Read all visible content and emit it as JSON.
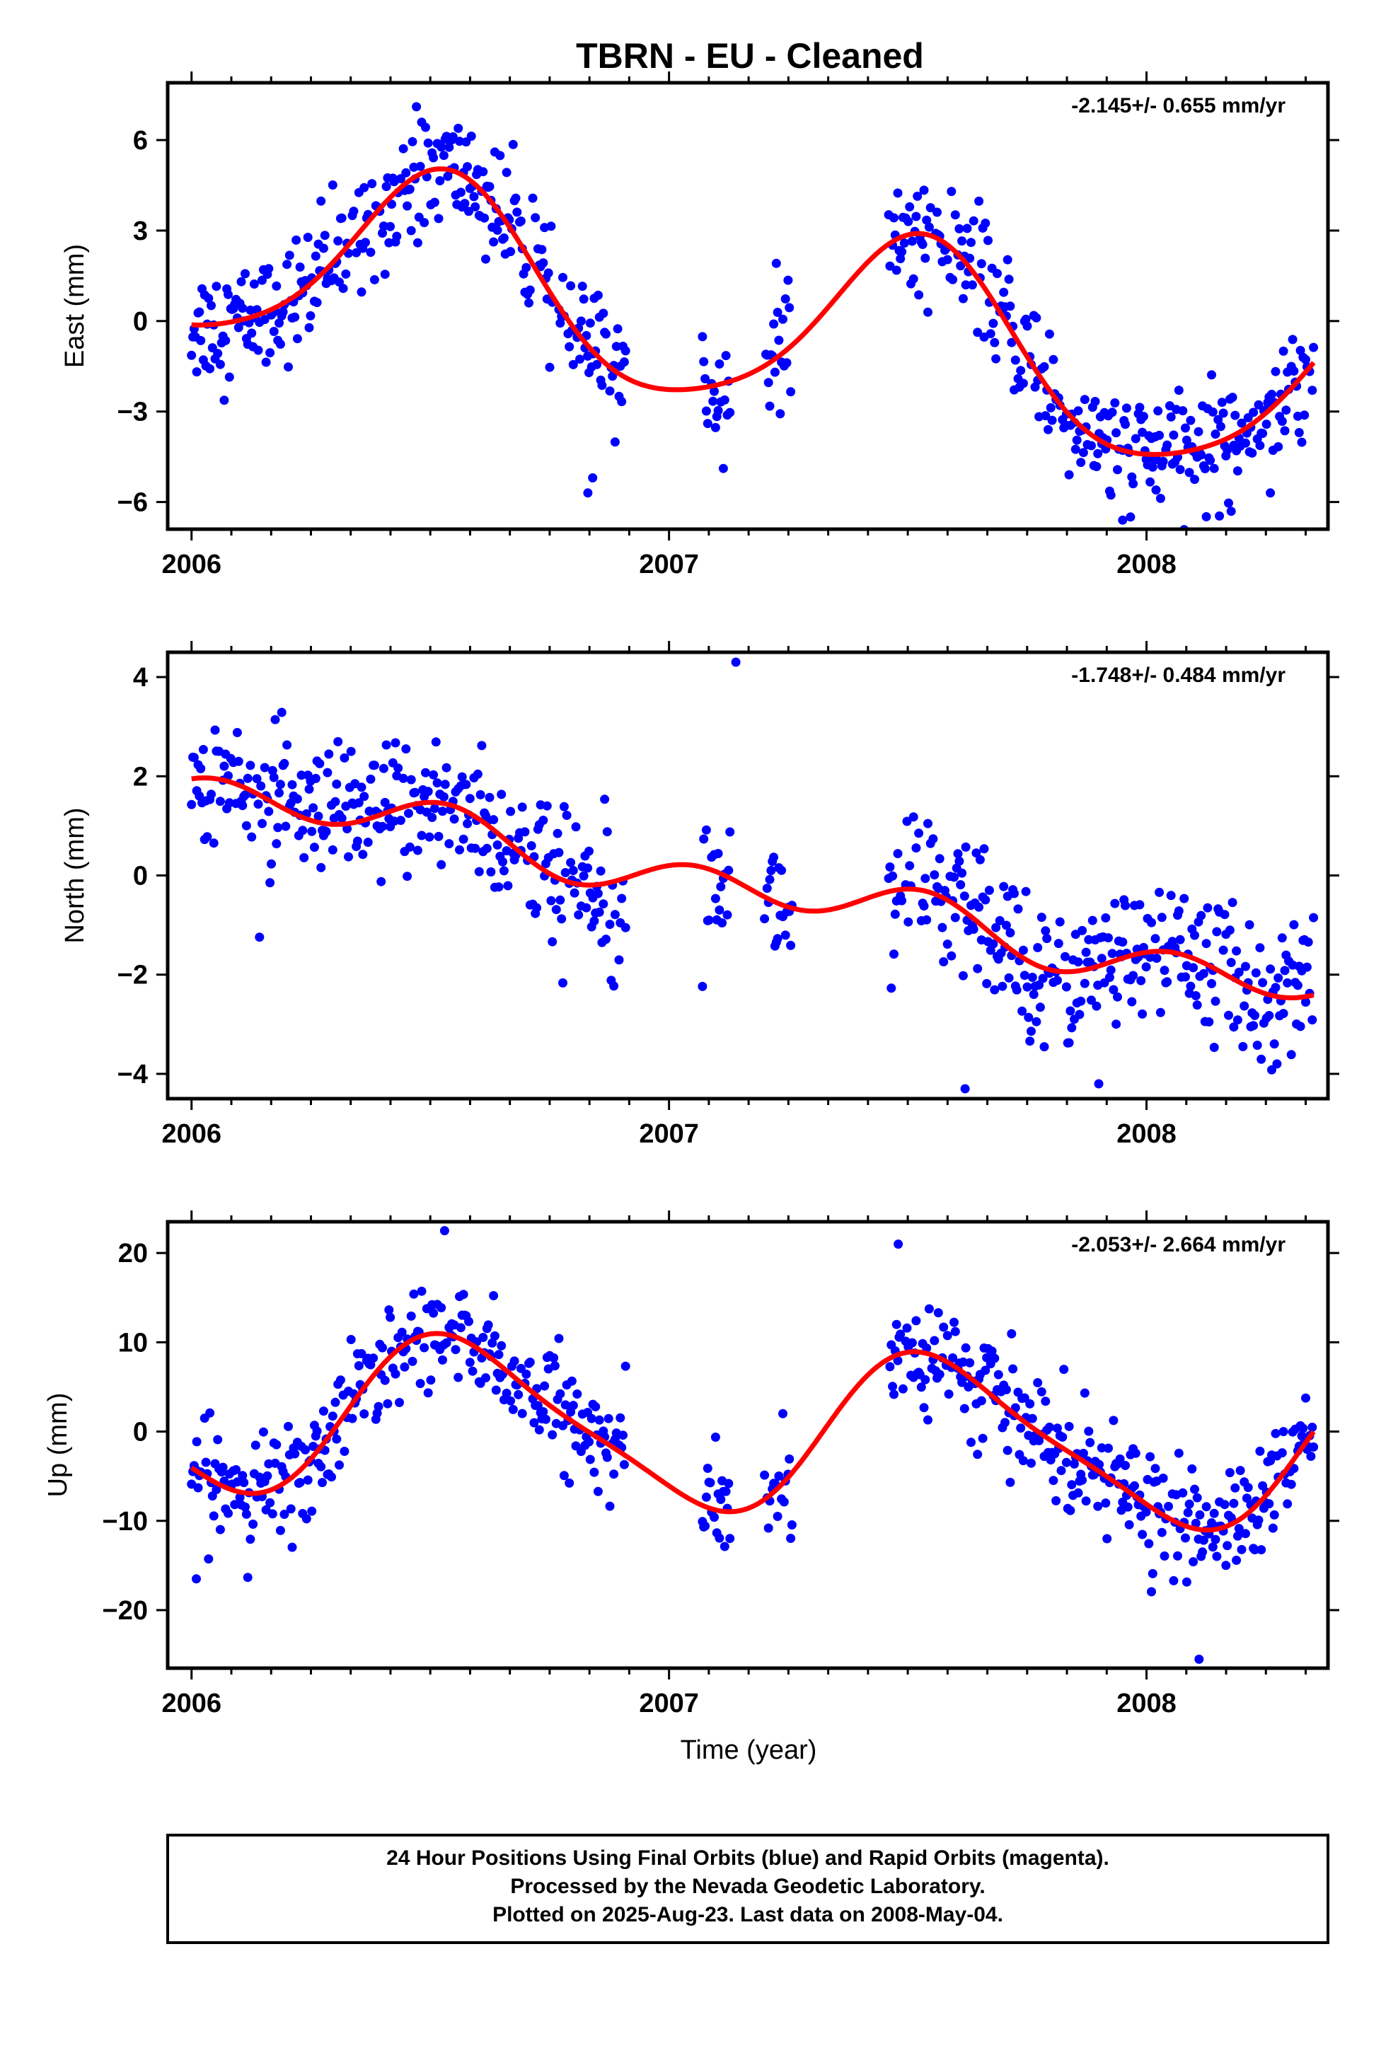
{
  "title": "TBRN  - EU - Cleaned",
  "x_axis_label": "Time (year)",
  "footer": {
    "line1": "24 Hour Positions Using Final Orbits (blue) and Rapid Orbits (magenta).",
    "line2": "Processed by the Nevada Geodetic Laboratory.",
    "line3": "Plotted on 2025-Aug-23. Last data on 2008-May-04."
  },
  "colors": {
    "points": "#0000ff",
    "fit": "#ff0000",
    "axes": "#000000"
  },
  "chart_data": [
    {
      "type": "scatter",
      "component": "east",
      "ylabel": "East (mm)",
      "rate_label": "-2.145+/- 0.655 mm/yr",
      "xlim": [
        2005.95,
        2008.38
      ],
      "ylim": [
        -6.9,
        7.9
      ],
      "x_ticks": [
        2006,
        2007,
        2008
      ],
      "y_ticks": [
        -6,
        -3,
        0,
        3,
        6
      ],
      "y_tick_labels": [
        "−6",
        "−3",
        "0",
        "3",
        "6"
      ],
      "model": {
        "type": "seasonal_fit",
        "offset": 0.0,
        "rate": -2.145,
        "a1": -3.1,
        "b1": -0.4,
        "a2": 0.4,
        "b2": 0.3,
        "t0": 2007.2
      },
      "scatter": 1.3,
      "outliers": [
        [
          2006.83,
          -5.7
        ],
        [
          2006.84,
          -5.2
        ],
        [
          2007.95,
          -6.6
        ],
        [
          2008.02,
          -5.6
        ]
      ],
      "segments": [
        [
          2006.0,
          2006.91
        ],
        [
          2007.07,
          2007.13
        ],
        [
          2007.2,
          2007.26
        ],
        [
          2007.46,
          2008.35
        ]
      ]
    },
    {
      "type": "scatter",
      "component": "north",
      "ylabel": "North (mm)",
      "rate_label": "-1.748+/- 0.484 mm/yr",
      "xlim": [
        2005.95,
        2008.38
      ],
      "ylim": [
        -4.5,
        4.5
      ],
      "x_ticks": [
        2006,
        2007,
        2008
      ],
      "y_ticks": [
        -4,
        -2,
        0,
        2,
        4
      ],
      "y_tick_labels": [
        "−4",
        "−2",
        "0",
        "2",
        "4"
      ],
      "model": {
        "type": "seasonal_fit",
        "offset": -0.3,
        "rate": -1.748,
        "a1": -0.2,
        "b1": 0.1,
        "a2": 0.35,
        "b2": 0.2,
        "t0": 2007.2
      },
      "scatter": 0.95,
      "outliers": [
        [
          2007.14,
          4.3
        ],
        [
          2007.62,
          -4.3
        ],
        [
          2007.9,
          -4.2
        ]
      ],
      "segments": [
        [
          2006.0,
          2006.91
        ],
        [
          2007.07,
          2007.13
        ],
        [
          2007.2,
          2007.26
        ],
        [
          2007.46,
          2008.35
        ]
      ]
    },
    {
      "type": "scatter",
      "component": "up",
      "ylabel": "Up (mm)",
      "rate_label": "-2.053+/- 2.664 mm/yr",
      "xlim": [
        2005.95,
        2008.38
      ],
      "ylim": [
        -26.5,
        23.5
      ],
      "x_ticks": [
        2006,
        2007,
        2008
      ],
      "y_ticks": [
        -20,
        -10,
        0,
        10,
        20
      ],
      "y_tick_labels": [
        "−20",
        "−10",
        "0",
        "10",
        "20"
      ],
      "model": {
        "type": "seasonal_fit",
        "offset": 0.0,
        "rate": -2.053,
        "a1": -8.0,
        "b1": -3.5,
        "a2": 1.5,
        "b2": -1.0,
        "t0": 2007.2
      },
      "scatter": 4.0,
      "outliers": [
        [
          2006.53,
          22.5
        ],
        [
          2008.11,
          -25.5
        ],
        [
          2007.48,
          21.0
        ],
        [
          2006.01,
          -16.5
        ]
      ],
      "segments": [
        [
          2006.0,
          2006.91
        ],
        [
          2007.07,
          2007.13
        ],
        [
          2007.2,
          2007.26
        ],
        [
          2007.46,
          2008.35
        ]
      ]
    }
  ]
}
